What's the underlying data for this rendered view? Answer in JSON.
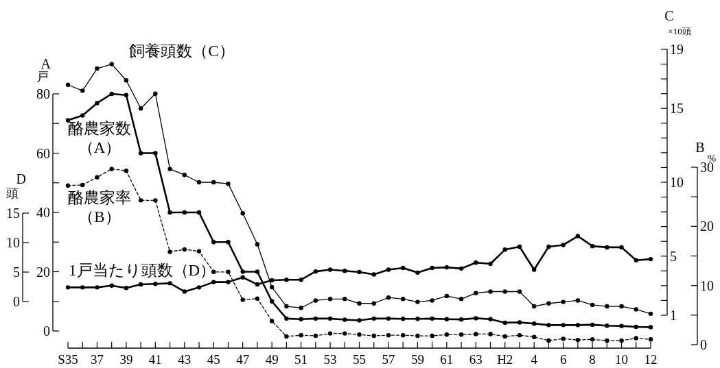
{
  "chart_data": [
    {
      "type": "line",
      "marker": "circle",
      "categories": [
        "S35",
        null,
        "37",
        null,
        "39",
        null,
        "41",
        null,
        "43",
        null,
        "45",
        null,
        "47",
        null,
        "49",
        null,
        "51",
        null,
        "53",
        null,
        "55",
        null,
        "57",
        null,
        "59",
        null,
        "61",
        null,
        "63",
        null,
        "H2",
        null,
        "4",
        null,
        "6",
        null,
        "8",
        null,
        "10",
        null,
        "12"
      ],
      "ylabel": "A\n戸",
      "ylim": [
        0,
        80
      ],
      "yticks": [
        0,
        {
          "value": 10,
          "label": null
        },
        20,
        {
          "value": 30,
          "label": null
        },
        40,
        {
          "value": 50,
          "label": null
        },
        60,
        {
          "value": 70,
          "label": null
        },
        80
      ],
      "y2label": "C\n×10頭",
      "y2lim": [
        1,
        19
      ],
      "y2ticks": [
        1,
        {
          "value": 2,
          "label": null
        },
        {
          "value": 3,
          "label": null
        },
        {
          "value": 4,
          "label": null
        },
        5,
        {
          "value": 6,
          "label": null
        },
        {
          "value": 7,
          "label": null
        },
        {
          "value": 8,
          "label": null
        },
        {
          "value": 9,
          "label": null
        },
        10,
        {
          "value": 11,
          "label": null
        },
        {
          "value": 12,
          "label": null
        },
        {
          "value": 13,
          "label": null
        },
        {
          "value": 14,
          "label": null
        },
        15,
        {
          "value": 16,
          "label": null
        },
        {
          "value": 17,
          "label": null
        },
        {
          "value": 18,
          "label": null
        },
        19
      ],
      "y3label": "B\n%",
      "y3lim": [
        0,
        30
      ],
      "y3ticks": [
        0,
        {
          "value": 5,
          "label": null
        },
        10,
        {
          "value": 15,
          "label": null
        },
        20,
        {
          "value": 25,
          "label": null
        },
        30
      ],
      "series": [
        {
          "name": "飼養頭数（C）",
          "axis": "y2",
          "color": "#000000",
          "line_style": "solid",
          "values": [
            16.6,
            16.2,
            17.7,
            18.0,
            16.9,
            15.0,
            16.0,
            10.9,
            10.5,
            10.0,
            10.0,
            9.9,
            7.9,
            5.8,
            2.9,
            1.6,
            1.5,
            2.0,
            2.1,
            2.1,
            1.8,
            1.8,
            2.2,
            2.1,
            1.9,
            2.0,
            2.3,
            2.1,
            2.5,
            2.6,
            2.6,
            2.6,
            1.6,
            1.8,
            1.9,
            2.0,
            1.7,
            1.6,
            1.6,
            1.4,
            1.1
          ]
        },
        {
          "name": "酪農家数（A）",
          "color": "#000000",
          "line_style": "solid",
          "values": [
            71.1,
            72.7,
            76.9,
            80,
            79.6,
            60,
            60,
            40,
            40,
            40,
            30,
            30,
            20,
            20,
            10,
            4.2,
            4.0,
            4.2,
            4.2,
            3.8,
            3.6,
            4.2,
            4.2,
            4.1,
            4.1,
            4.2,
            4.0,
            3.9,
            4.3,
            4.0,
            2.8,
            2.9,
            2.5,
            2.0,
            2.0,
            2.0,
            2.1,
            1.8,
            1.7,
            1.4,
            1.3
          ]
        },
        {
          "name": "酪農家率（B）",
          "axis": "y3",
          "color": "#000000",
          "line_style": "dashed",
          "values": [
            26.9,
            27.0,
            28.3,
            29.7,
            29.4,
            24.4,
            24.4,
            15.7,
            16.1,
            15.8,
            12.3,
            12.3,
            7.6,
            7.8,
            4.0,
            1.4,
            1.6,
            1.5,
            1.9,
            1.9,
            1.7,
            1.5,
            1.6,
            1.6,
            1.5,
            1.5,
            1.7,
            1.7,
            1.8,
            1.8,
            1.4,
            1.6,
            1.3,
            0.7,
            1.0,
            0.8,
            0.9,
            0.7,
            0.7,
            1.1,
            0.9
          ]
        }
      ]
    },
    {
      "type": "line",
      "marker": "circle",
      "tick_labels": "y",
      "categories": [
        null,
        null,
        null,
        null,
        null,
        null,
        null,
        null,
        null,
        null,
        null,
        null,
        null,
        null,
        null,
        null,
        null,
        null,
        null,
        null,
        null,
        null,
        null,
        null,
        null,
        null,
        null,
        null,
        null,
        null,
        null,
        null,
        null,
        null,
        null,
        null,
        null,
        null,
        null,
        null,
        null
      ],
      "ylabel": "D\n頭",
      "ylim": [
        0,
        15
      ],
      "yticks": [
        0,
        5,
        10,
        15
      ],
      "series": [
        {
          "name": "1戸当たり頭数（D）",
          "color": "#000000",
          "line_style": "solid",
          "values": [
            2.4,
            2.4,
            2.4,
            2.7,
            2.3,
            2.9,
            3.0,
            3.1,
            1.7,
            2.4,
            3.3,
            3.3,
            4.1,
            2.9,
            3.6,
            3.7,
            3.7,
            5.1,
            5.4,
            5.2,
            5.0,
            4.6,
            5.4,
            5.7,
            4.9,
            5.7,
            5.8,
            5.6,
            6.6,
            6.4,
            8.8,
            9.3,
            5.4,
            9.3,
            9.6,
            11.1,
            9.4,
            9.2,
            9.2,
            7.0,
            7.2
          ]
        }
      ]
    }
  ]
}
